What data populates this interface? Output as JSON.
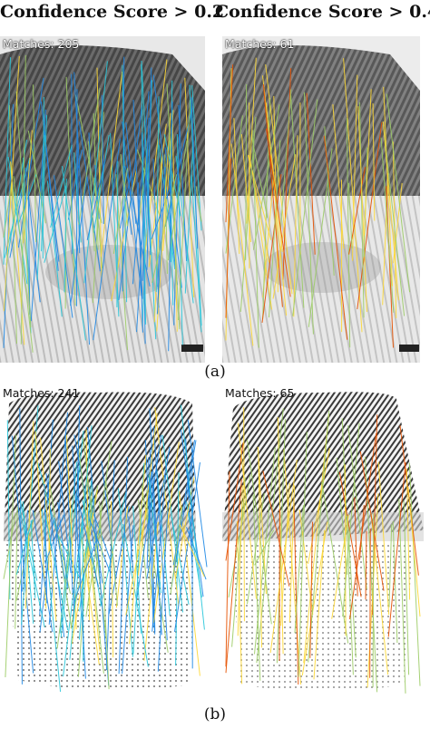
{
  "headers": {
    "left": "Confidence Score > 0.2",
    "right": "Confidence Score > 0.4"
  },
  "panels": [
    {
      "id": "a-left",
      "matches": "Matches: 205",
      "match_count": 205
    },
    {
      "id": "a-right",
      "matches": "Matches: 61",
      "match_count": 61
    },
    {
      "id": "b-left",
      "matches": "Matches: 241",
      "match_count": 241
    },
    {
      "id": "b-right",
      "matches": "Matches: 65",
      "match_count": 65
    }
  ],
  "captions": {
    "a": "(a)",
    "b": "(b)"
  },
  "colors": {
    "low_conf": "#1e88e5",
    "mid_conf": "#26c6da",
    "mid2_conf": "#9ccc65",
    "high_conf": "#fdd835",
    "top_conf": "#e65100"
  }
}
